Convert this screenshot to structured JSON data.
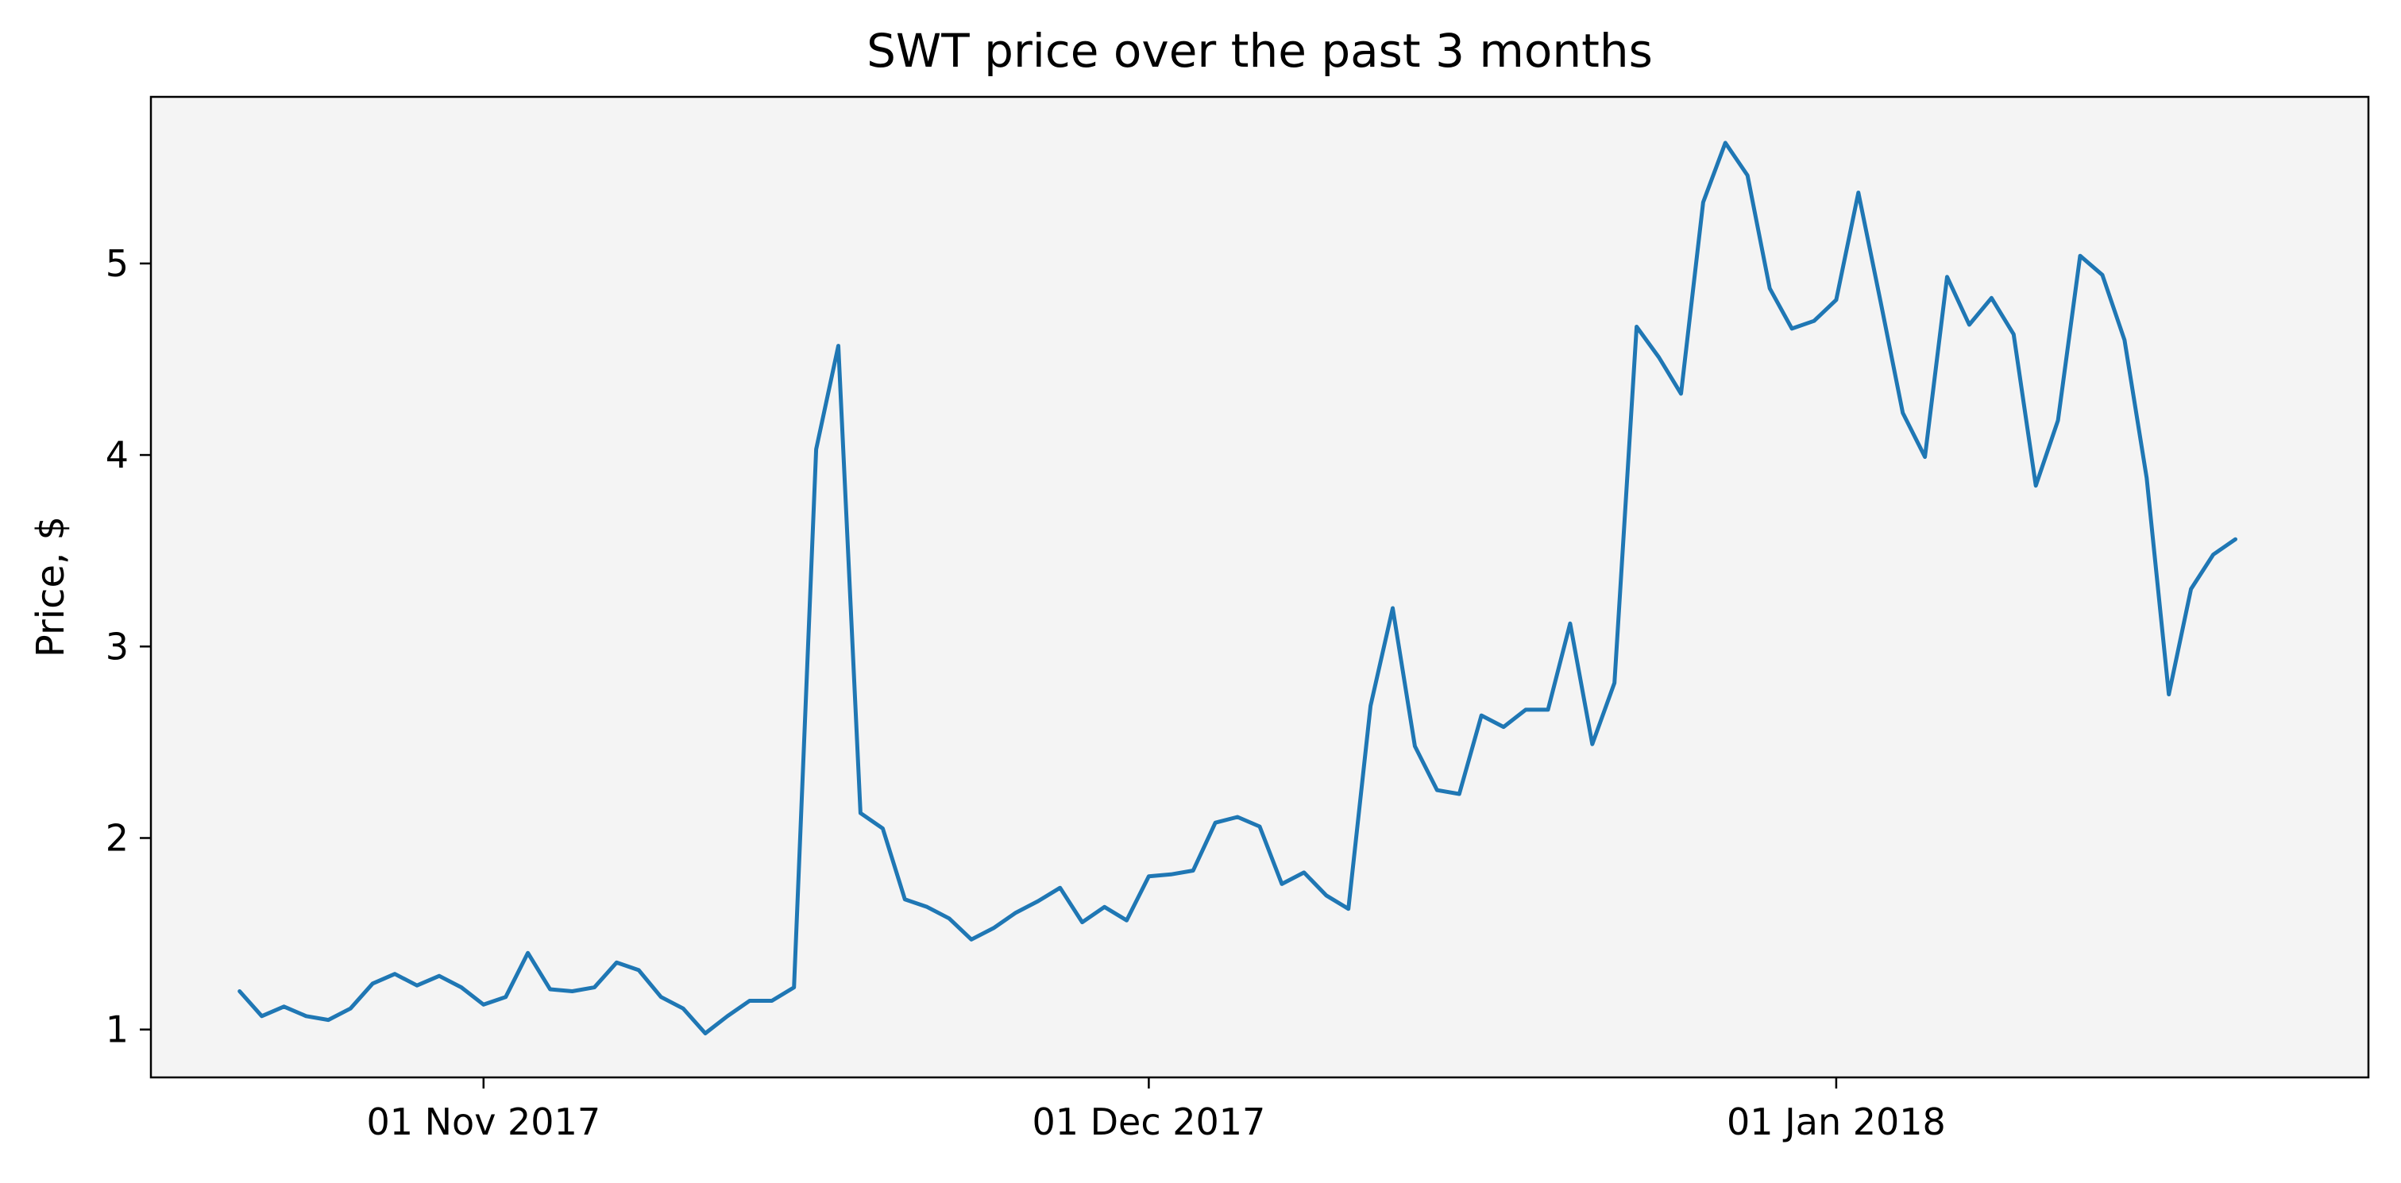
{
  "chart_data": {
    "type": "line",
    "title": "SWT price over the past 3 months",
    "xlabel": "",
    "ylabel": "Price, $",
    "xlim": [
      "2017-10-17",
      "2018-01-25"
    ],
    "ylim": [
      0.75,
      5.87
    ],
    "xticks": [
      {
        "date": "2017-11-01",
        "label": "01 Nov 2017"
      },
      {
        "date": "2017-12-01",
        "label": "01 Dec 2017"
      },
      {
        "date": "2018-01-01",
        "label": "01 Jan 2018"
      }
    ],
    "yticks": [
      1,
      2,
      3,
      4,
      5
    ],
    "grid": false,
    "background": "#f4f4f4",
    "series": [
      {
        "color": "#1f77b4",
        "points": [
          {
            "x": "2017-10-21",
            "y": 1.2
          },
          {
            "x": "2017-10-22",
            "y": 1.07
          },
          {
            "x": "2017-10-23",
            "y": 1.12
          },
          {
            "x": "2017-10-24",
            "y": 1.07
          },
          {
            "x": "2017-10-25",
            "y": 1.05
          },
          {
            "x": "2017-10-26",
            "y": 1.11
          },
          {
            "x": "2017-10-27",
            "y": 1.24
          },
          {
            "x": "2017-10-28",
            "y": 1.29
          },
          {
            "x": "2017-10-29",
            "y": 1.23
          },
          {
            "x": "2017-10-30",
            "y": 1.28
          },
          {
            "x": "2017-10-31",
            "y": 1.22
          },
          {
            "x": "2017-11-01",
            "y": 1.13
          },
          {
            "x": "2017-11-02",
            "y": 1.17
          },
          {
            "x": "2017-11-03",
            "y": 1.4
          },
          {
            "x": "2017-11-04",
            "y": 1.21
          },
          {
            "x": "2017-11-05",
            "y": 1.2
          },
          {
            "x": "2017-11-06",
            "y": 1.22
          },
          {
            "x": "2017-11-07",
            "y": 1.35
          },
          {
            "x": "2017-11-08",
            "y": 1.31
          },
          {
            "x": "2017-11-09",
            "y": 1.17
          },
          {
            "x": "2017-11-10",
            "y": 1.11
          },
          {
            "x": "2017-11-11",
            "y": 0.98
          },
          {
            "x": "2017-11-12",
            "y": 1.07
          },
          {
            "x": "2017-11-13",
            "y": 1.15
          },
          {
            "x": "2017-11-14",
            "y": 1.15
          },
          {
            "x": "2017-11-15",
            "y": 1.22
          },
          {
            "x": "2017-11-16",
            "y": 4.03
          },
          {
            "x": "2017-11-17",
            "y": 4.57
          },
          {
            "x": "2017-11-18",
            "y": 2.13
          },
          {
            "x": "2017-11-19",
            "y": 2.05
          },
          {
            "x": "2017-11-20",
            "y": 1.68
          },
          {
            "x": "2017-11-21",
            "y": 1.64
          },
          {
            "x": "2017-11-22",
            "y": 1.58
          },
          {
            "x": "2017-11-23",
            "y": 1.47
          },
          {
            "x": "2017-11-24",
            "y": 1.53
          },
          {
            "x": "2017-11-25",
            "y": 1.61
          },
          {
            "x": "2017-11-26",
            "y": 1.67
          },
          {
            "x": "2017-11-27",
            "y": 1.74
          },
          {
            "x": "2017-11-28",
            "y": 1.56
          },
          {
            "x": "2017-11-29",
            "y": 1.64
          },
          {
            "x": "2017-11-30",
            "y": 1.57
          },
          {
            "x": "2017-12-01",
            "y": 1.8
          },
          {
            "x": "2017-12-02",
            "y": 1.81
          },
          {
            "x": "2017-12-03",
            "y": 1.83
          },
          {
            "x": "2017-12-04",
            "y": 2.08
          },
          {
            "x": "2017-12-05",
            "y": 2.11
          },
          {
            "x": "2017-12-06",
            "y": 2.06
          },
          {
            "x": "2017-12-07",
            "y": 1.76
          },
          {
            "x": "2017-12-08",
            "y": 1.82
          },
          {
            "x": "2017-12-09",
            "y": 1.7
          },
          {
            "x": "2017-12-10",
            "y": 1.63
          },
          {
            "x": "2017-12-11",
            "y": 2.69
          },
          {
            "x": "2017-12-12",
            "y": 3.2
          },
          {
            "x": "2017-12-13",
            "y": 2.48
          },
          {
            "x": "2017-12-14",
            "y": 2.25
          },
          {
            "x": "2017-12-15",
            "y": 2.23
          },
          {
            "x": "2017-12-16",
            "y": 2.64
          },
          {
            "x": "2017-12-17",
            "y": 2.58
          },
          {
            "x": "2017-12-18",
            "y": 2.67
          },
          {
            "x": "2017-12-19",
            "y": 2.67
          },
          {
            "x": "2017-12-20",
            "y": 3.12
          },
          {
            "x": "2017-12-21",
            "y": 2.49
          },
          {
            "x": "2017-12-22",
            "y": 2.81
          },
          {
            "x": "2017-12-23",
            "y": 4.67
          },
          {
            "x": "2017-12-24",
            "y": 4.51
          },
          {
            "x": "2017-12-25",
            "y": 4.32
          },
          {
            "x": "2017-12-26",
            "y": 5.32
          },
          {
            "x": "2017-12-27",
            "y": 5.63
          },
          {
            "x": "2017-12-28",
            "y": 5.46
          },
          {
            "x": "2017-12-29",
            "y": 4.87
          },
          {
            "x": "2017-12-30",
            "y": 4.66
          },
          {
            "x": "2017-12-31",
            "y": 4.7
          },
          {
            "x": "2018-01-01",
            "y": 4.81
          },
          {
            "x": "2018-01-02",
            "y": 5.37
          },
          {
            "x": "2018-01-03",
            "y": 4.8
          },
          {
            "x": "2018-01-04",
            "y": 4.22
          },
          {
            "x": "2018-01-05",
            "y": 3.99
          },
          {
            "x": "2018-01-06",
            "y": 4.93
          },
          {
            "x": "2018-01-07",
            "y": 4.68
          },
          {
            "x": "2018-01-08",
            "y": 4.82
          },
          {
            "x": "2018-01-09",
            "y": 4.63
          },
          {
            "x": "2018-01-10",
            "y": 3.84
          },
          {
            "x": "2018-01-11",
            "y": 4.18
          },
          {
            "x": "2018-01-12",
            "y": 5.04
          },
          {
            "x": "2018-01-13",
            "y": 4.94
          },
          {
            "x": "2018-01-14",
            "y": 4.6
          },
          {
            "x": "2018-01-15",
            "y": 3.88
          },
          {
            "x": "2018-01-16",
            "y": 2.75
          },
          {
            "x": "2018-01-17",
            "y": 3.3
          },
          {
            "x": "2018-01-18",
            "y": 3.48
          },
          {
            "x": "2018-01-19",
            "y": 3.56
          }
        ]
      }
    ]
  }
}
